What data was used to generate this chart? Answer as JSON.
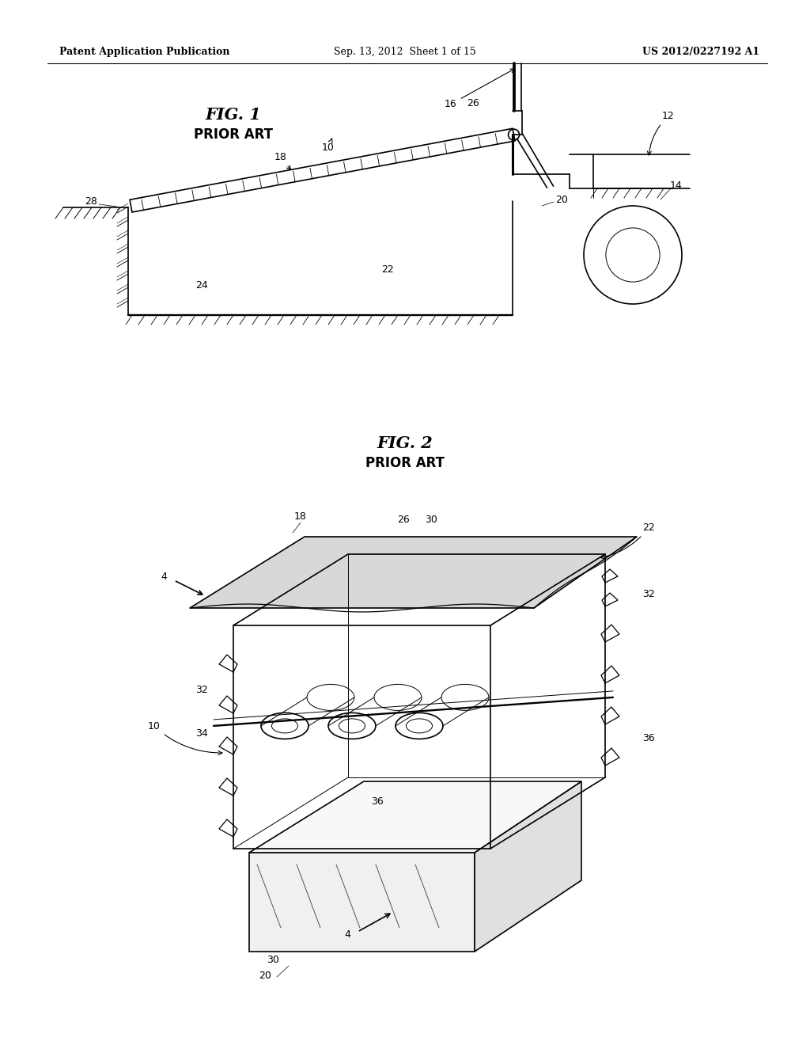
{
  "bg_color": "#ffffff",
  "header_left": "Patent Application Publication",
  "header_center": "Sep. 13, 2012  Sheet 1 of 15",
  "header_right": "US 2012/0227192 A1",
  "fig1_title": "FIG. 1",
  "fig1_subtitle": "PRIOR ART",
  "fig2_title": "FIG. 2",
  "fig2_subtitle": "PRIOR ART",
  "lw": 1.2,
  "tlw": 0.7
}
